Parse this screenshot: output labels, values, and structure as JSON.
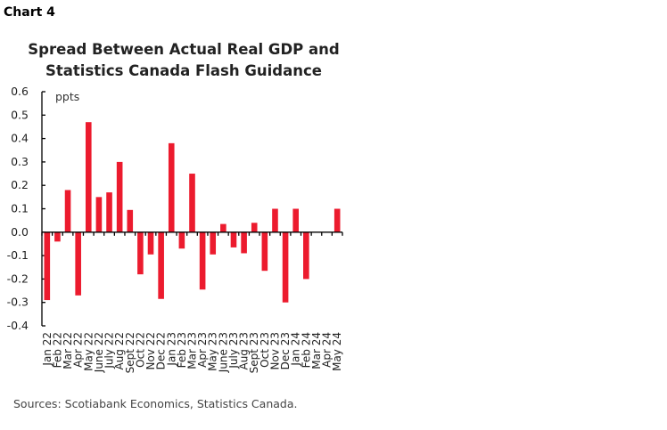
{
  "chart_label": "Chart 4",
  "chart_data": {
    "type": "bar",
    "title": "Spread Between Actual Real GDP and Statistics Canada Flash Guidance",
    "title_lines": [
      "Spread Between Actual Real GDP and",
      "Statistics Canada Flash Guidance"
    ],
    "ylabel": "ppts",
    "xlabel": "",
    "ylim": [
      -0.4,
      0.6
    ],
    "yticks": [
      "0.6",
      "0.5",
      "0.4",
      "0.3",
      "0.2",
      "0.1",
      "0.0",
      "-0.1",
      "-0.2",
      "-0.3",
      "-0.4"
    ],
    "grid": false,
    "bar_color": "#EC1B2E",
    "categories": [
      "Jan 22",
      "Feb 22",
      "Mar 22",
      "Apr 22",
      "May 22",
      "June 22",
      "July 22",
      "Aug 22",
      "Sept 22",
      "Oct 22",
      "Nov 22",
      "Dec 22",
      "Jan 23",
      "Feb 23",
      "Mar 23",
      "Apr 23",
      "May 23",
      "June 23",
      "July 23",
      "Aug 23",
      "Sept 23",
      "Oct 23",
      "Nov 23",
      "Dec 23",
      "Jan 24",
      "Feb 24",
      "Mar 24",
      "Apr 24",
      "May 24"
    ],
    "values": [
      -0.29,
      -0.04,
      0.18,
      -0.27,
      0.47,
      0.15,
      0.17,
      0.3,
      0.095,
      -0.18,
      -0.095,
      -0.285,
      0.38,
      -0.07,
      0.25,
      -0.245,
      -0.095,
      0.035,
      -0.065,
      -0.09,
      0.04,
      -0.165,
      0.1,
      -0.3,
      0.1,
      -0.2,
      0,
      0,
      0.1
    ]
  },
  "source": "Sources: Scotiabank Economics, Statistics Canada."
}
